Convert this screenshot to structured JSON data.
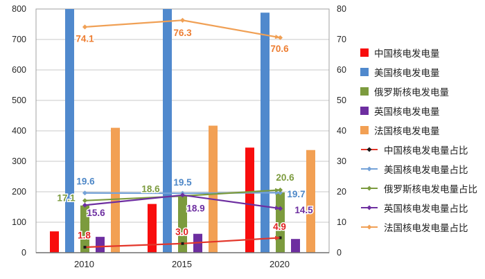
{
  "chart_data": {
    "type": "bar+line",
    "title": "",
    "categories": [
      "2010",
      "2015",
      "2020"
    ],
    "left_axis": {
      "min": 0,
      "max": 800,
      "step": 100,
      "tick_labels": [
        "0",
        "100",
        "200",
        "300",
        "400",
        "500",
        "600",
        "700",
        "800"
      ]
    },
    "right_axis": {
      "min": 0,
      "max": 80,
      "step": 10,
      "tick_labels": [
        "0",
        "10",
        "20",
        "30",
        "40",
        "50",
        "60",
        "70",
        "80"
      ]
    },
    "grid": "horizontal",
    "legend_position": "right",
    "bar_series": [
      {
        "key": "china",
        "name": "中国核电发电量",
        "color": "#f80d0d",
        "values": [
          70,
          160,
          345
        ]
      },
      {
        "key": "usa",
        "name": "美国核电发电量",
        "color": "#5089cd",
        "values": [
          800,
          800,
          788
        ]
      },
      {
        "key": "russia",
        "name": "俄罗斯核电发电量",
        "color": "#7c9b3e",
        "values": [
          155,
          186,
          198
        ]
      },
      {
        "key": "uk",
        "name": "英国核电发电量",
        "color": "#6d2ea0",
        "values": [
          52,
          62,
          45
        ]
      },
      {
        "key": "france",
        "name": "法国核电发电量",
        "color": "#f2a054",
        "values": [
          410,
          417,
          337
        ]
      }
    ],
    "line_series": [
      {
        "key": "china-share",
        "name": "中国核电发电量占比",
        "color": "#e3362a",
        "marker_color": "#1a1a1a",
        "values": [
          1.8,
          3.0,
          4.9
        ],
        "data_labels": [
          "1.8",
          "3.0",
          "4.9"
        ],
        "label_color": "#e02020"
      },
      {
        "key": "usa-share",
        "name": "美国核电发电量占比",
        "color": "#74a2d8",
        "marker_color": "#74a2d8",
        "values": [
          19.6,
          19.5,
          19.7
        ],
        "data_labels": [
          "19.6",
          "19.5",
          "19.7"
        ],
        "label_color": "#4d87c7"
      },
      {
        "key": "russia-share",
        "name": "俄罗斯核电发电量占比",
        "color": "#7c9b3e",
        "marker_color": "#7c9b3e",
        "values": [
          17.1,
          18.6,
          20.6
        ],
        "data_labels": [
          "17.1",
          "18.6",
          "20.6"
        ],
        "label_color": "#7c9b3e"
      },
      {
        "key": "uk-share",
        "name": "英国核电发电量占比",
        "color": "#6d2ea0",
        "marker_color": "#6d2ea0",
        "values": [
          15.6,
          18.9,
          14.5
        ],
        "data_labels": [
          "15.6",
          "18.9",
          "14.5"
        ],
        "label_color": "#6d2ea0"
      },
      {
        "key": "france-share",
        "name": "法国核电发电量占比",
        "color": "#f0a055",
        "marker_color": "#f0a055",
        "values": [
          74.1,
          76.3,
          70.6
        ],
        "data_labels": [
          "74.1",
          "76.3",
          "70.6"
        ],
        "label_color": "#ed7d31"
      }
    ]
  }
}
